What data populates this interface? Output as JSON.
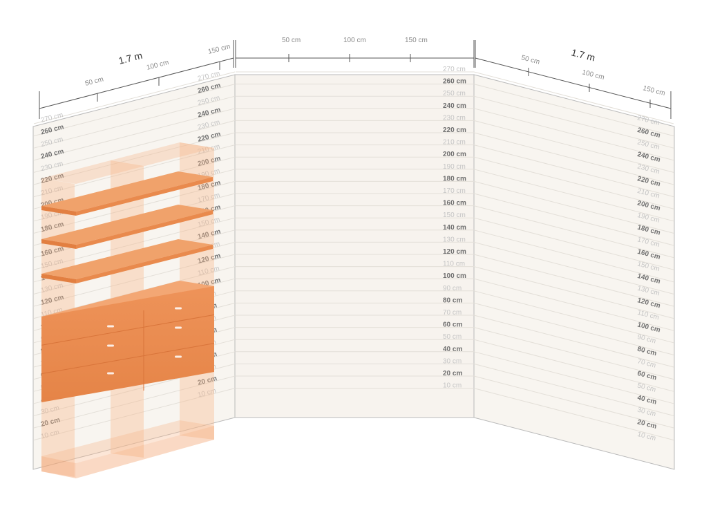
{
  "planner": {
    "left_wall": {
      "width_label": "1.7 m",
      "ruler_ticks": [
        "50 cm",
        "100 cm",
        "150 cm"
      ]
    },
    "center_wall": {
      "ruler_ticks": [
        "50 cm",
        "100 cm",
        "150 cm"
      ]
    },
    "right_wall": {
      "width_label": "1.7 m",
      "ruler_ticks": [
        "50 cm",
        "100 cm",
        "150 cm"
      ]
    },
    "height_marks": [
      "270 cm",
      "260 cm",
      "250 cm",
      "240 cm",
      "230 cm",
      "220 cm",
      "210 cm",
      "200 cm",
      "190 cm",
      "180 cm",
      "170 cm",
      "160 cm",
      "150 cm",
      "140 cm",
      "130 cm",
      "120 cm",
      "110 cm",
      "100 cm",
      "90 cm",
      "80 cm",
      "70 cm",
      "60 cm",
      "50 cm",
      "40 cm",
      "30 cm",
      "20 cm",
      "10 cm"
    ],
    "colors": {
      "wall_fill": "#f7f4ef",
      "wall_line": "#e3dfd8",
      "edge": "#b8b8b8",
      "ruler": "#555555",
      "shelf": "#f0a26b",
      "drawer": "#e98a4d",
      "frame": "#f6b88b"
    },
    "furniture": {
      "shelf_count": 3,
      "drawer_rows": 3
    }
  }
}
